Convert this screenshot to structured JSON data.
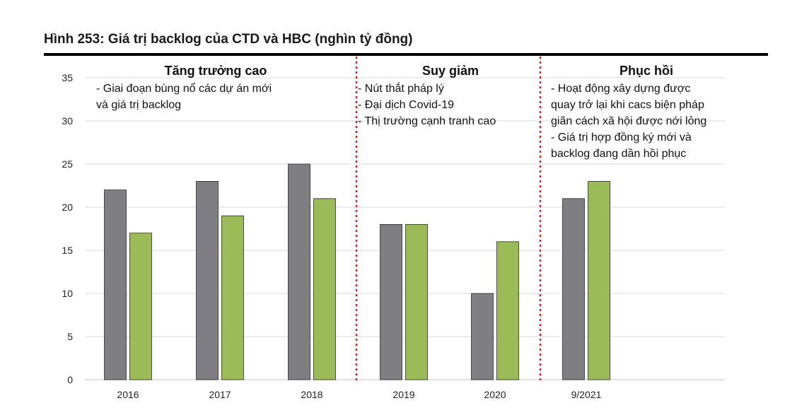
{
  "figure_title": "Hình 253: Giá trị backlog của CTD và HBC (nghìn tỷ đồng)",
  "colors": {
    "series_1": "#7f7f83",
    "series_2": "#9bbb59",
    "divider": "#e31b23",
    "grid": "#d9d9d9"
  },
  "chart_data": {
    "type": "bar",
    "title": "",
    "xlabel": "",
    "ylabel": "",
    "ylim": [
      0,
      35
    ],
    "yticks": [
      0,
      5,
      10,
      15,
      20,
      25,
      30,
      35
    ],
    "categories": [
      "2016",
      "2017",
      "2018",
      "2019",
      "2020",
      "9/2021"
    ],
    "series": [
      {
        "values": [
          22,
          23,
          25,
          18,
          10,
          21
        ]
      },
      {
        "values": [
          17,
          19,
          21,
          18,
          16,
          23
        ]
      }
    ],
    "grid": true,
    "legend": "none",
    "phases": [
      {
        "title": "Tăng trưởng cao",
        "notes": [
          "- Giai đoạn bùng nổ các dự án mới",
          "và giá trị backlog"
        ]
      },
      {
        "title": "Suy giảm",
        "notes": [
          "- Nút thắt pháp lý",
          "- Đại dịch Covid-19",
          "- Thị trường cạnh tranh cao"
        ]
      },
      {
        "title": "Phục hồi",
        "notes": [
          "- Hoạt động xây dựng được",
          "quay trở lại khi cacs biện pháp",
          "giãn cách xã hội được nới lỏng",
          "- Giá trị hợp đồng ký mới và",
          "backlog đang dần hồi phục"
        ]
      }
    ]
  }
}
